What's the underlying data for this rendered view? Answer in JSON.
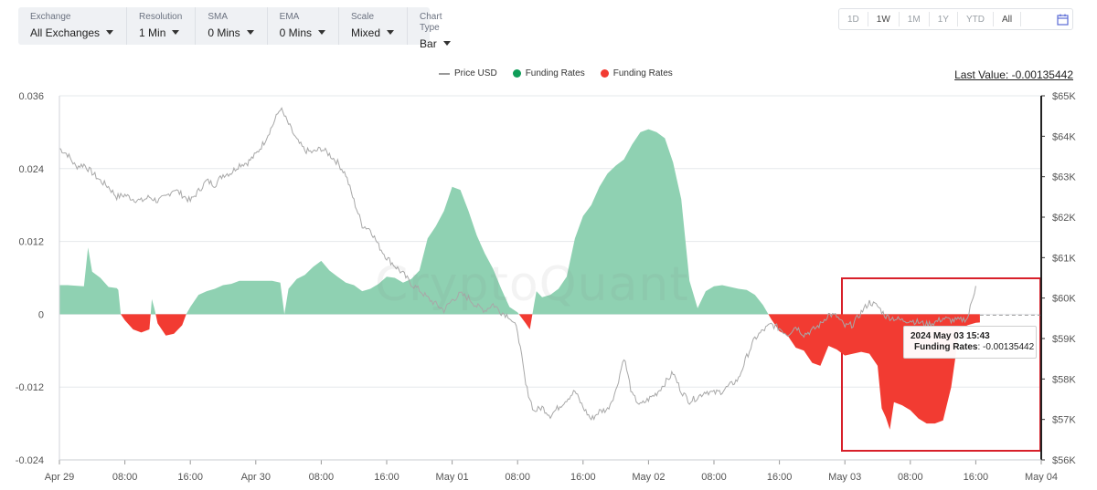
{
  "toolbar": {
    "exchange": {
      "label": "Exchange",
      "value": "All Exchanges"
    },
    "resolution": {
      "label": "Resolution",
      "value": "1 Min"
    },
    "sma": {
      "label": "SMA",
      "value": "0 Mins"
    },
    "ema": {
      "label": "EMA",
      "value": "0 Mins"
    },
    "scale": {
      "label": "Scale",
      "value": "Mixed"
    },
    "chart_type": {
      "label": "Chart Type",
      "value": "Bar"
    }
  },
  "range_buttons": [
    "1D",
    "1W",
    "1M",
    "1Y",
    "YTD",
    "All"
  ],
  "range_active": "1W",
  "legend": {
    "price": "Price USD",
    "funding_pos": "Funding Rates",
    "funding_neg": "Funding Rates"
  },
  "last_value": "Last Value: -0.00135442",
  "tooltip": {
    "date": "2024 May 03 15:43",
    "label": "Funding Rates",
    "value": ": -0.00135442"
  },
  "watermark": "CryptoQuant",
  "colors": {
    "positive": "#8fd1b2",
    "positive_legend": "#0f9d58",
    "negative": "#f23b32",
    "price": "#a8a8a8",
    "highlight": "#d8202a"
  },
  "chart_data": {
    "type": "area",
    "title": "",
    "x_unit": "hours since Apr 29 00:00",
    "xlim": [
      0,
      120
    ],
    "x_ticks": [
      {
        "x": 0,
        "label": "Apr 29"
      },
      {
        "x": 8,
        "label": "08:00"
      },
      {
        "x": 16,
        "label": "16:00"
      },
      {
        "x": 24,
        "label": "Apr 30"
      },
      {
        "x": 32,
        "label": "08:00"
      },
      {
        "x": 40,
        "label": "16:00"
      },
      {
        "x": 48,
        "label": "May 01"
      },
      {
        "x": 56,
        "label": "08:00"
      },
      {
        "x": 64,
        "label": "16:00"
      },
      {
        "x": 72,
        "label": "May 02"
      },
      {
        "x": 80,
        "label": "08:00"
      },
      {
        "x": 88,
        "label": "16:00"
      },
      {
        "x": 96,
        "label": "May 03"
      },
      {
        "x": 104,
        "label": "08:00"
      },
      {
        "x": 112,
        "label": "16:00"
      },
      {
        "x": 120,
        "label": "May 04"
      }
    ],
    "y_left": {
      "label": "Funding Rates",
      "lim": [
        -0.024,
        0.036
      ],
      "ticks": [
        "0.036",
        "0.024",
        "0.012",
        "0",
        "-0.012",
        "-0.024"
      ]
    },
    "y_right": {
      "label": "Price USD",
      "lim": [
        56000,
        65000
      ],
      "ticks": [
        "$65K",
        "$64K",
        "$63K",
        "$62K",
        "$61K",
        "$60K",
        "$59K",
        "$58K",
        "$57K",
        "$56K"
      ]
    },
    "series": [
      {
        "name": "Funding Rates",
        "axis": "left",
        "x": [
          0,
          1,
          3,
          3.5,
          4,
          5,
          6,
          7,
          7.2,
          7.5,
          8,
          9,
          10,
          11,
          11.3,
          11.6,
          12,
          13,
          14,
          15,
          15.5,
          16,
          17,
          18,
          19,
          20,
          21,
          22,
          23,
          26,
          27,
          27.5,
          28,
          29,
          30,
          31,
          32,
          33,
          34,
          35,
          36,
          37,
          38,
          39,
          40,
          41,
          42,
          43,
          44,
          45,
          46,
          47,
          47.5,
          48,
          49,
          50,
          51,
          51.5,
          52,
          53,
          54,
          55,
          56,
          57,
          57.5,
          58,
          58.3,
          59,
          60,
          61,
          62,
          63,
          64,
          65,
          66,
          67,
          68,
          69,
          70,
          71,
          72,
          73,
          74,
          75,
          75.5,
          76,
          77,
          78,
          79,
          80,
          81,
          82,
          83,
          84,
          85,
          86,
          87,
          88,
          89,
          90,
          91,
          92,
          93,
          94,
          95,
          96,
          97,
          98,
          99,
          100,
          100.5,
          101,
          101.5,
          102,
          103,
          104,
          105,
          106,
          107,
          108,
          109,
          110,
          111,
          112,
          112.5
        ],
        "y": [
          0.0048,
          0.0048,
          0.0046,
          0.011,
          0.007,
          0.006,
          0.0045,
          0.0043,
          0.004,
          0,
          -0.001,
          -0.0025,
          -0.003,
          -0.0025,
          0.0025,
          0.001,
          -0.0015,
          -0.0035,
          -0.0032,
          -0.0018,
          0,
          0.0012,
          0.0032,
          0.0038,
          0.0042,
          0.0048,
          0.005,
          0.0055,
          0.0055,
          0.0055,
          0.0052,
          0,
          0.0042,
          0.0058,
          0.0065,
          0.0078,
          0.0088,
          0.0072,
          0.0062,
          0.0052,
          0.0048,
          0.0038,
          0.0042,
          0.005,
          0.0062,
          0.006,
          0.0052,
          0.0058,
          0.0072,
          0.0125,
          0.0145,
          0.017,
          0.019,
          0.021,
          0.0205,
          0.017,
          0.013,
          0.0115,
          0.01,
          0.0075,
          0.0042,
          0.0012,
          0.0003,
          -0.0015,
          -0.0025,
          0.0015,
          0.0038,
          0.0028,
          0.0032,
          0.0042,
          0.0062,
          0.0125,
          0.0162,
          0.018,
          0.021,
          0.0232,
          0.0245,
          0.0255,
          0.028,
          0.03,
          0.0305,
          0.03,
          0.029,
          0.025,
          0.022,
          0.019,
          0.0055,
          0.001,
          0.0038,
          0.0046,
          0.0048,
          0.0045,
          0.0042,
          0.004,
          0.0032,
          0.0015,
          -0.0008,
          -0.0028,
          -0.0035,
          -0.0055,
          -0.006,
          -0.008,
          -0.0085,
          -0.0052,
          -0.0058,
          -0.0068,
          -0.0065,
          -0.0062,
          -0.0065,
          -0.0085,
          -0.0155,
          -0.017,
          -0.019,
          -0.0145,
          -0.015,
          -0.0158,
          -0.0172,
          -0.018,
          -0.018,
          -0.0175,
          -0.012,
          -0.0025,
          -0.0018,
          -0.0014,
          -0.00135442
        ]
      },
      {
        "name": "Price USD",
        "axis": "right",
        "x": [
          0,
          1,
          2,
          3,
          4,
          5,
          6,
          7,
          8,
          9,
          10,
          11,
          12,
          13,
          14,
          15,
          16,
          17,
          18,
          19,
          20,
          21,
          22,
          23,
          24,
          25,
          26,
          27,
          28,
          29,
          30,
          31,
          32,
          33,
          34,
          35,
          36,
          37,
          38,
          39,
          40,
          41,
          42,
          43,
          44,
          45,
          46,
          47,
          48,
          49,
          50,
          51,
          52,
          53,
          54,
          55,
          56,
          57,
          58,
          59,
          60,
          61,
          62,
          63,
          64,
          65,
          66,
          67,
          68,
          69,
          70,
          71,
          72,
          73,
          74,
          75,
          76,
          77,
          78,
          79,
          80,
          81,
          82,
          83,
          84,
          85,
          86,
          87,
          88,
          89,
          90,
          91,
          92,
          93,
          94,
          95,
          96,
          97,
          98,
          99,
          100,
          101,
          102,
          103,
          104,
          105,
          106,
          107,
          108,
          109,
          110,
          111,
          112
        ],
        "y": [
          63700,
          63550,
          63250,
          63300,
          63100,
          62900,
          62750,
          62500,
          62550,
          62450,
          62400,
          62500,
          62400,
          62500,
          62700,
          62550,
          62400,
          62650,
          62900,
          62800,
          63050,
          63100,
          63300,
          63350,
          63550,
          63850,
          64250,
          64700,
          64300,
          63900,
          63650,
          63600,
          63700,
          63550,
          63350,
          63050,
          62400,
          61800,
          61700,
          61300,
          61000,
          60800,
          60600,
          60350,
          60200,
          60000,
          59850,
          59700,
          59950,
          60100,
          60000,
          59800,
          59700,
          59850,
          59650,
          59550,
          59200,
          57850,
          57200,
          57300,
          57100,
          57300,
          57500,
          57700,
          57300,
          57000,
          57200,
          57250,
          57700,
          58550,
          57600,
          57350,
          57500,
          57650,
          57900,
          58150,
          57700,
          57450,
          57550,
          57700,
          57650,
          57700,
          57850,
          58000,
          58550,
          59000,
          59200,
          59350,
          59250,
          59100,
          59300,
          59100,
          59200,
          59350,
          59600,
          59550,
          59300,
          59350,
          59650,
          59900,
          59800,
          59550,
          59500,
          59450,
          59450,
          59400,
          59350,
          59400,
          59500,
          59450,
          59450,
          59500,
          60300
        ]
      }
    ]
  }
}
